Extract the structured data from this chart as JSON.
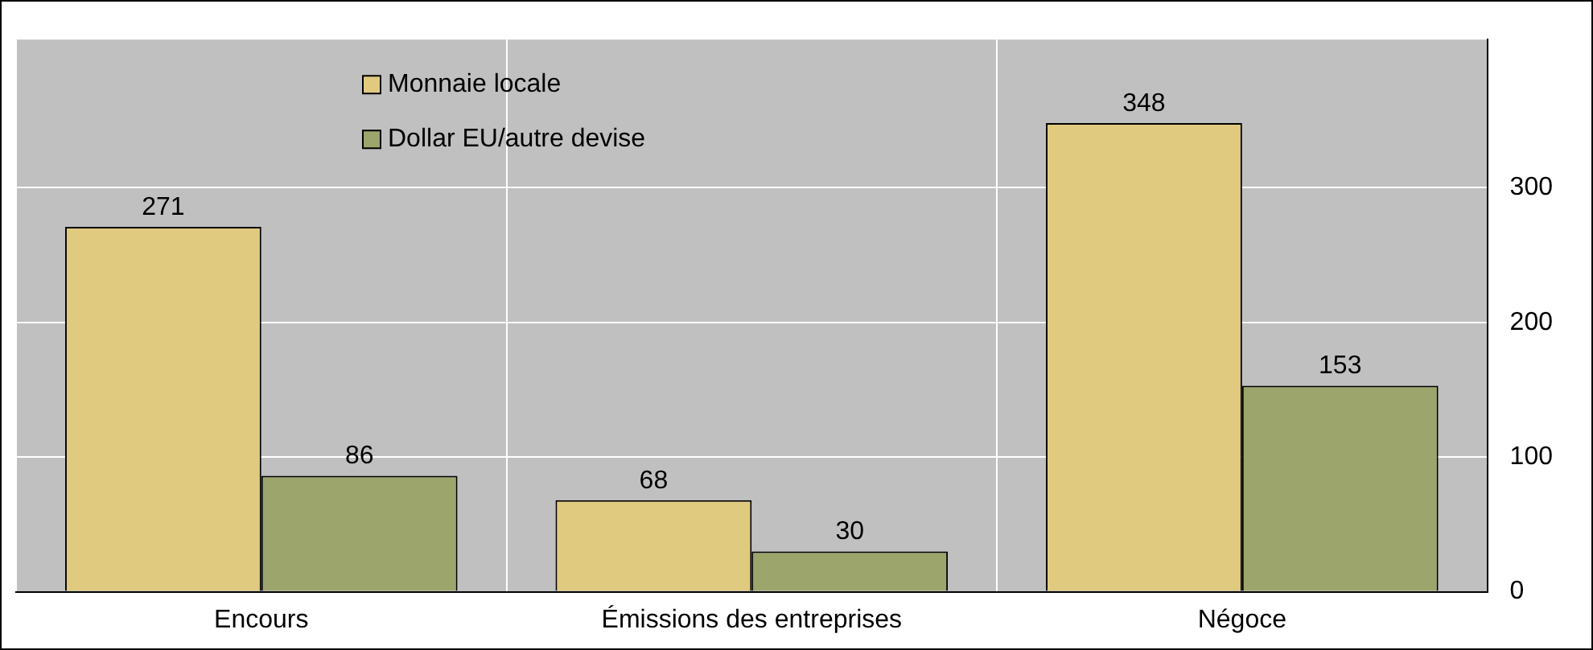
{
  "chart_data": {
    "type": "bar",
    "categories": [
      "Encours",
      "Émissions des entreprises",
      "Négoce"
    ],
    "series": [
      {
        "name": "Monnaie locale",
        "color": "#e0ca80",
        "values": [
          271,
          68,
          348
        ]
      },
      {
        "name": "Dollar EU/autre devise",
        "color": "#9ca56c",
        "values": [
          86,
          30,
          153
        ]
      }
    ],
    "ylim": [
      0,
      410
    ],
    "yticks": [
      0,
      100,
      200,
      300
    ],
    "grid": true,
    "legend": "top left",
    "data_labels": true
  }
}
